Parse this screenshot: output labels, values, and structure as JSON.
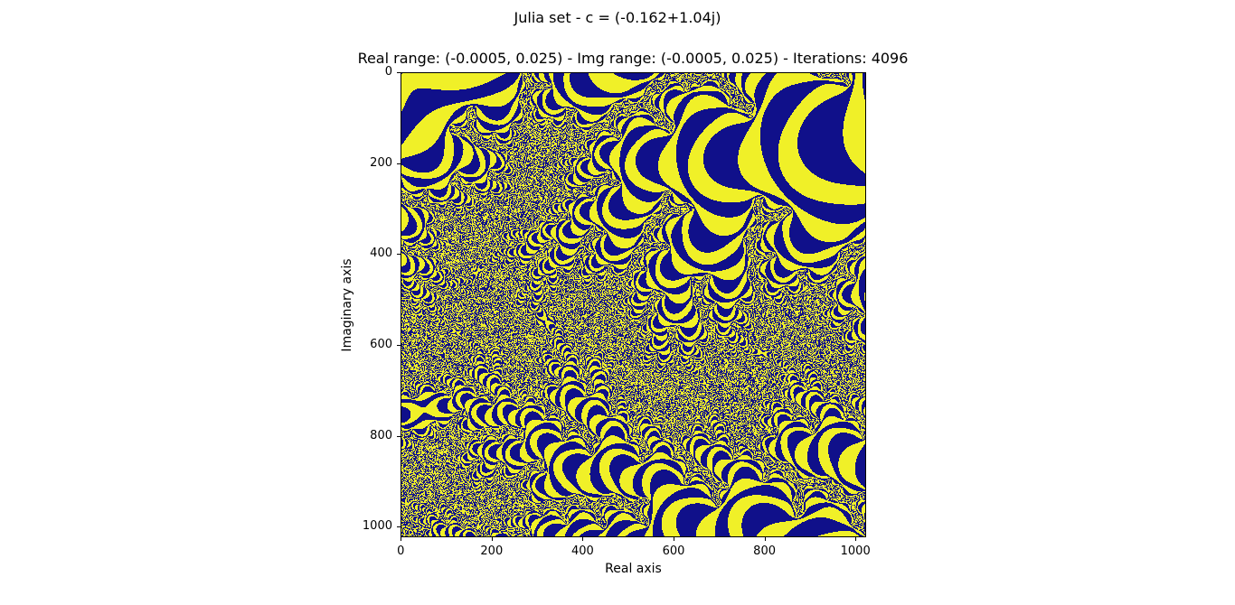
{
  "figure": {
    "suptitle": "Julia set - c = (-0.162+1.04j)",
    "axes_title": "Real range: (-0.0005, 0.025) - Img range: (-0.0005, 0.025) - Iterations: 4096"
  },
  "image": {
    "c_real": -0.162,
    "c_imag": 1.04,
    "real_range": [
      -0.0005,
      0.025
    ],
    "img_range": [
      -0.0005,
      0.025
    ],
    "iterations": 4096,
    "colors": {
      "dark": "#10108a",
      "light": "#f0f028",
      "ground": "#7f7f58"
    }
  },
  "axes": {
    "xlabel": "Real axis",
    "ylabel": "Imaginary axis",
    "xticks": [
      "0",
      "200",
      "400",
      "600",
      "800",
      "1000"
    ],
    "yticks": [
      "0",
      "200",
      "400",
      "600",
      "800",
      "1000"
    ],
    "tick_values": [
      0,
      200,
      400,
      600,
      800,
      1000
    ],
    "pixel_extent": 1024
  }
}
